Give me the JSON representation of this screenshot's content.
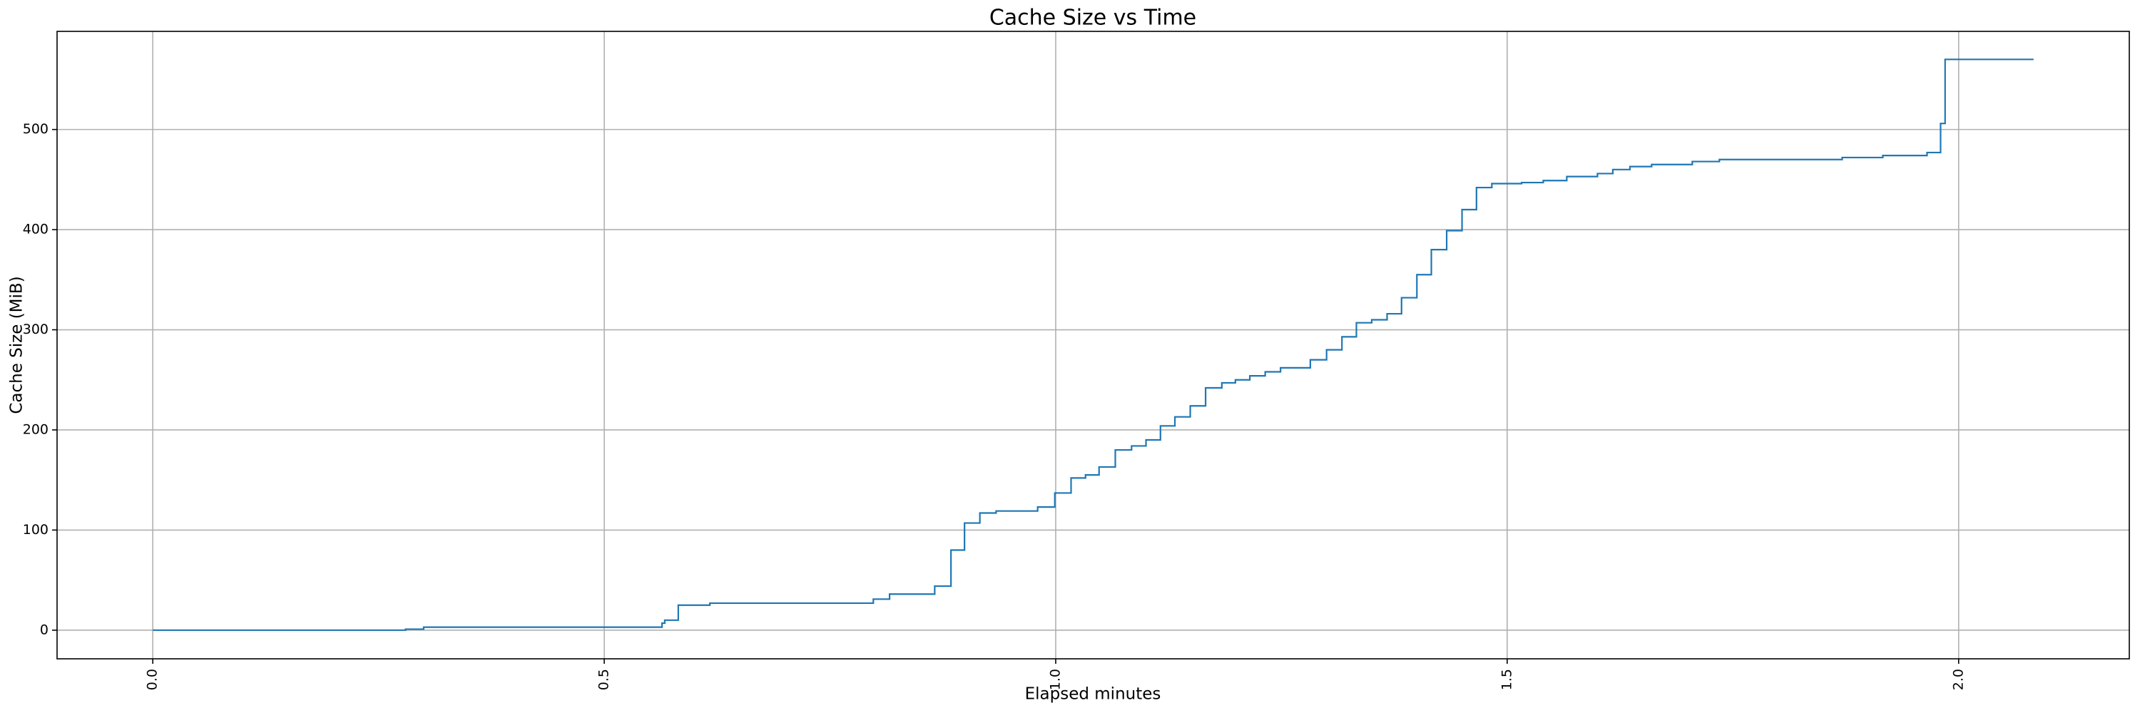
{
  "chart_data": {
    "type": "line",
    "title": "Cache Size vs Time",
    "xlabel": "Elapsed minutes",
    "ylabel": "Cache Size (MiB)",
    "drawstyle": "steps-post",
    "grid": true,
    "x": [
      0,
      0.19,
      0.28,
      0.3,
      0.564,
      0.567,
      0.582,
      0.617,
      0.798,
      0.816,
      0.866,
      0.884,
      0.899,
      0.916,
      0.934,
      0.98,
      0.999,
      1.017,
      1.033,
      1.048,
      1.066,
      1.084,
      1.1,
      1.116,
      1.132,
      1.149,
      1.166,
      1.184,
      1.199,
      1.215,
      1.232,
      1.249,
      1.282,
      1.3,
      1.317,
      1.333,
      1.35,
      1.367,
      1.383,
      1.4,
      1.416,
      1.433,
      1.45,
      1.466,
      1.483,
      1.516,
      1.54,
      1.566,
      1.6,
      1.617,
      1.636,
      1.66,
      1.705,
      1.735,
      1.871,
      1.916,
      1.965,
      1.98,
      1.985,
      2.083
    ],
    "series": [
      {
        "name": "Cache Size",
        "color": "#1f77b4",
        "values": [
          0,
          0,
          1,
          3,
          7,
          10,
          25,
          27,
          31,
          36,
          44,
          80,
          107,
          117,
          119,
          123,
          137,
          152,
          155,
          163,
          180,
          184,
          190,
          204,
          213,
          224,
          242,
          247,
          250,
          254,
          258,
          262,
          270,
          280,
          293,
          307,
          310,
          316,
          332,
          355,
          380,
          399,
          420,
          442,
          446,
          447,
          449,
          453,
          456,
          460,
          463,
          465,
          468,
          470,
          472,
          474,
          477,
          506,
          570,
          570
        ]
      }
    ],
    "xlim": [
      -0.106,
      2.189
    ],
    "xticks": [
      {
        "value": 0,
        "label": "0.0"
      },
      0.5,
      {
        "value": 1,
        "label": "1.0"
      },
      1.5,
      {
        "value": 2,
        "label": "2.0"
      }
    ],
    "ylim": [
      -28.6,
      598
    ],
    "yticks": [
      0,
      100,
      200,
      300,
      400,
      500
    ]
  }
}
